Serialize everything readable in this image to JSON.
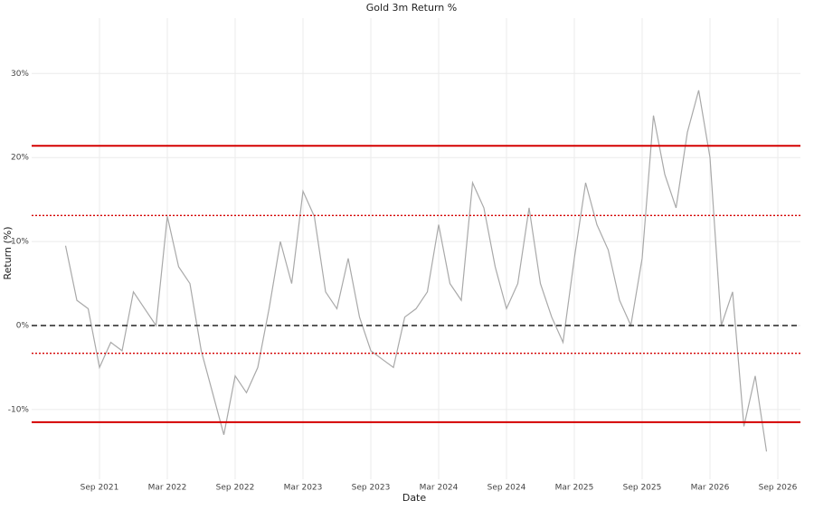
{
  "chart_data": {
    "type": "line",
    "title": "Gold 3m Return %",
    "x_label": "Date",
    "y_label": "Return (%)",
    "x": [
      "2021-06",
      "2021-07",
      "2021-08",
      "2021-09",
      "2021-10",
      "2021-11",
      "2021-12",
      "2022-01",
      "2022-02",
      "2022-03",
      "2022-04",
      "2022-05",
      "2022-06",
      "2022-07",
      "2022-08",
      "2022-09",
      "2022-10",
      "2022-11",
      "2022-12",
      "2023-01",
      "2023-02",
      "2023-03",
      "2023-04",
      "2023-05",
      "2023-06",
      "2023-07",
      "2023-08",
      "2023-09",
      "2023-10",
      "2023-11",
      "2023-12",
      "2024-01",
      "2024-02",
      "2024-03",
      "2024-04",
      "2024-05",
      "2024-06",
      "2024-07",
      "2024-08",
      "2024-09",
      "2024-10",
      "2024-11",
      "2024-12",
      "2025-01",
      "2025-02",
      "2025-03",
      "2025-04",
      "2025-05",
      "2025-06",
      "2025-07",
      "2025-08",
      "2025-09",
      "2025-10",
      "2025-11",
      "2025-12",
      "2026-01",
      "2026-02",
      "2026-03",
      "2026-04",
      "2026-05",
      "2026-06",
      "2026-07",
      "2026-08"
    ],
    "series": [
      {
        "color": "#a9a9a9",
        "values": [
          9.5,
          3,
          2,
          -5,
          -2,
          -3,
          4,
          2,
          0,
          13,
          7,
          5,
          -3,
          -8,
          -13,
          -6,
          -8,
          -5,
          2,
          10,
          5,
          16,
          13,
          4,
          2,
          8,
          1,
          -3,
          -4,
          -5,
          1,
          2,
          4,
          12,
          5,
          3,
          17,
          14,
          7,
          2,
          5,
          14,
          5,
          1,
          -2,
          8,
          17,
          12,
          9,
          3,
          0,
          8,
          25,
          18,
          14,
          23,
          28,
          20,
          0,
          4,
          -12,
          -6,
          -15
        ]
      }
    ],
    "xlim": [
      "2021-03",
      "2026-11"
    ],
    "xticks": [
      {
        "value": "2021-09",
        "label": "Sep 2021"
      },
      {
        "value": "2022-03",
        "label": "Mar 2022"
      },
      {
        "value": "2022-09",
        "label": "Sep 2022"
      },
      {
        "value": "2023-03",
        "label": "Mar 2023"
      },
      {
        "value": "2023-09",
        "label": "Sep 2023"
      },
      {
        "value": "2024-03",
        "label": "Mar 2024"
      },
      {
        "value": "2024-09",
        "label": "Sep 2024"
      },
      {
        "value": "2025-03",
        "label": "Mar 2025"
      },
      {
        "value": "2025-09",
        "label": "Sep 2025"
      },
      {
        "value": "2026-03",
        "label": "Mar 2026"
      },
      {
        "value": "2026-09",
        "label": "Sep 2026"
      }
    ],
    "ylim": [
      -18.3,
      36.6
    ],
    "yticks": [
      {
        "value": -10,
        "label": "-10%"
      },
      {
        "value": 0,
        "label": "0%"
      },
      {
        "value": 10,
        "label": "10%"
      },
      {
        "value": 20,
        "label": "20%"
      },
      {
        "value": 30,
        "label": "30%"
      }
    ],
    "hlines": [
      {
        "value": 21.4,
        "style": "solid",
        "color": "#d40000"
      },
      {
        "value": -11.5,
        "style": "solid",
        "color": "#d40000"
      },
      {
        "value": 13.1,
        "style": "dotted",
        "color": "#d40000"
      },
      {
        "value": -3.3,
        "style": "dotted",
        "color": "#d40000"
      },
      {
        "value": 0,
        "style": "dashed",
        "color": "#222222"
      }
    ],
    "grid": true
  }
}
